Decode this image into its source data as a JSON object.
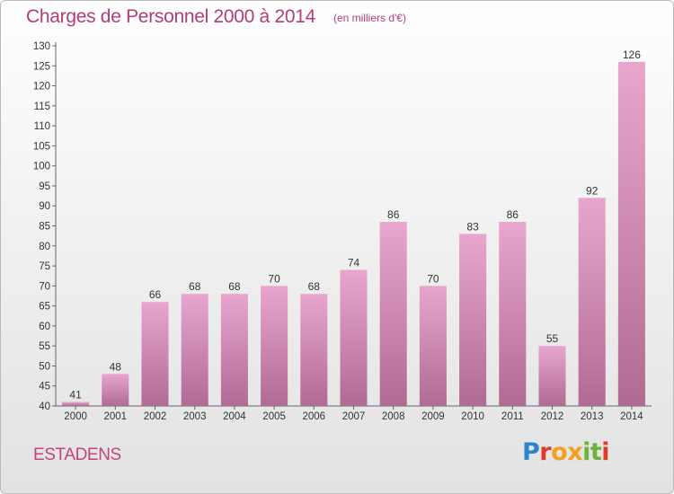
{
  "header": {
    "title": "Charges de Personnel 2000 à 2014",
    "subtitle": "(en milliers d'€)"
  },
  "footer": {
    "commune": "ESTADENS",
    "logo_text": "Proxiti",
    "logo_colors": [
      "#2a86c8",
      "#e23a2a",
      "#f2a01e",
      "#f2a01e",
      "#6bb33c",
      "#6bb33c",
      "#e23a2a"
    ]
  },
  "colors": {
    "bar_top": "#e8a6ce",
    "bar_bottom": "#b06b94",
    "axis_text": "#333333",
    "title": "#b13c78"
  },
  "chart_data": {
    "type": "bar",
    "categories": [
      "2000",
      "2001",
      "2002",
      "2003",
      "2004",
      "2005",
      "2006",
      "2007",
      "2008",
      "2009",
      "2010",
      "2011",
      "2012",
      "2013",
      "2014"
    ],
    "values": [
      41,
      48,
      66,
      68,
      68,
      70,
      68,
      74,
      86,
      70,
      83,
      86,
      55,
      92,
      126
    ],
    "ylim": [
      40,
      130
    ],
    "yticks": [
      40,
      45,
      50,
      55,
      60,
      65,
      70,
      75,
      80,
      85,
      90,
      95,
      100,
      105,
      110,
      115,
      120,
      125,
      130
    ],
    "grid": false,
    "xlabel": "",
    "ylabel": ""
  }
}
